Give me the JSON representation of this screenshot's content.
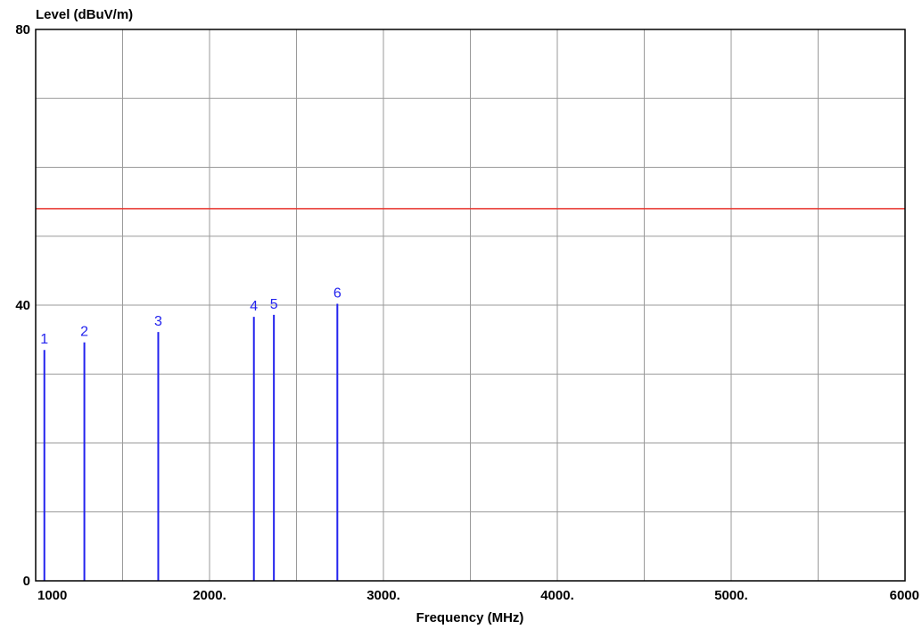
{
  "chart_data": {
    "type": "bar",
    "ylabel": "Level (dBuV/m)",
    "xlabel": "Frequency (MHz)",
    "xlim": [
      1000,
      6000
    ],
    "ylim": [
      0,
      80
    ],
    "x_major_step": 1000,
    "x_minor_step": 500,
    "y_grid_step": 10,
    "grid": true,
    "x_tick_values": [
      1000,
      2000,
      3000,
      4000,
      5000,
      6000
    ],
    "x_tick_labels": [
      "1000",
      "2000.",
      "3000.",
      "4000.",
      "5000.",
      "6000"
    ],
    "y_tick_values": [
      0,
      40,
      80
    ],
    "y_tick_labels": [
      "0",
      "40",
      "80"
    ],
    "limit_line": {
      "value": 54,
      "color": "#e8332b"
    },
    "marker_color": "#2222ee",
    "markers": [
      {
        "label": "1",
        "x": 1050,
        "y": 33.5
      },
      {
        "label": "2",
        "x": 1280,
        "y": 34.6
      },
      {
        "label": "3",
        "x": 1705,
        "y": 36.1
      },
      {
        "label": "4",
        "x": 2255,
        "y": 38.3
      },
      {
        "label": "5",
        "x": 2370,
        "y": 38.6
      },
      {
        "label": "6",
        "x": 2735,
        "y": 40.2
      }
    ]
  }
}
